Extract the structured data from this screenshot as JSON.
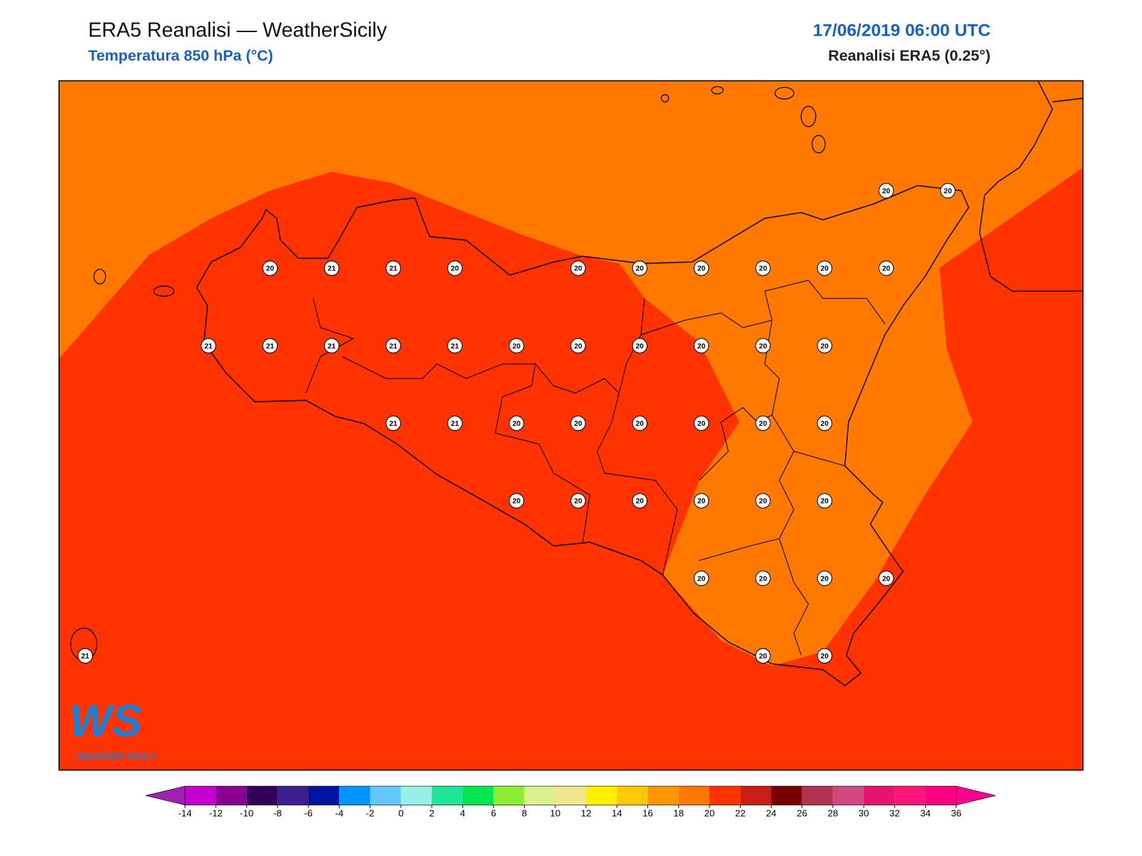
{
  "header": {
    "title": "ERA5 Reanalisi — WeatherSicily",
    "subtitle": "Temperatura 850 hPa (°C)",
    "date": "17/06/2019 06:00 UTC",
    "source": "Reanalisi ERA5 (0.25°)"
  },
  "logo": {
    "mark": "WS",
    "text": "WEATHER SICILY"
  },
  "stations": [
    [
      null,
      null,
      null,
      null,
      null,
      null,
      null,
      null,
      null,
      null,
      null,
      null,
      null,
      20,
      20
    ],
    [
      null,
      null,
      null,
      20,
      21,
      21,
      20,
      null,
      20,
      20,
      20,
      20,
      20,
      20,
      null
    ],
    [
      null,
      null,
      21,
      21,
      21,
      21,
      21,
      20,
      20,
      20,
      20,
      20,
      20,
      null,
      null
    ],
    [
      null,
      null,
      null,
      null,
      null,
      21,
      21,
      20,
      20,
      20,
      20,
      20,
      20,
      null,
      null
    ],
    [
      null,
      null,
      null,
      null,
      null,
      null,
      null,
      20,
      20,
      20,
      20,
      20,
      20,
      null,
      null
    ],
    [
      null,
      null,
      null,
      null,
      null,
      null,
      null,
      null,
      null,
      null,
      20,
      20,
      20,
      20,
      null
    ],
    [
      21,
      null,
      null,
      null,
      null,
      null,
      null,
      null,
      null,
      null,
      null,
      20,
      20,
      null,
      null
    ]
  ],
  "colorbar": {
    "ticks": [
      -14,
      -12,
      -10,
      -8,
      -6,
      -4,
      -2,
      0,
      2,
      4,
      6,
      8,
      10,
      12,
      14,
      16,
      18,
      20,
      22,
      24,
      26,
      28,
      30,
      32,
      34,
      36
    ],
    "colors": [
      "#c400d0",
      "#8a0090",
      "#32005a",
      "#3c1e8c",
      "#0014a0",
      "#0096ff",
      "#64c8ff",
      "#96f0e6",
      "#1ee696",
      "#00e650",
      "#8cf032",
      "#dcf08c",
      "#f0e68c",
      "#fff000",
      "#ffc800",
      "#ff9600",
      "#ff7800",
      "#ff3200",
      "#c81e14",
      "#780000",
      "#b43250",
      "#d24682",
      "#e6146e",
      "#ff1478",
      "#ff0080"
    ],
    "extend_colors": [
      "#a020b0",
      "#ff0090"
    ]
  }
}
